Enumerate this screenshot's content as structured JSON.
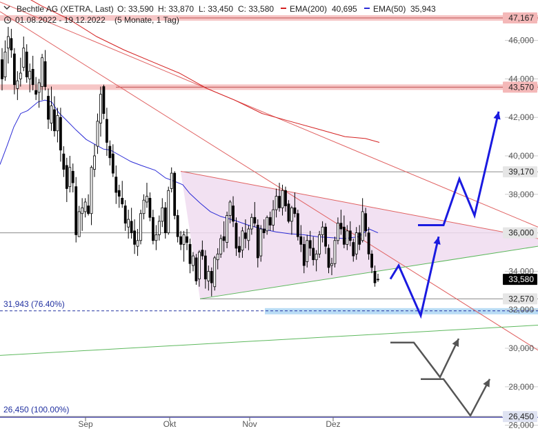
{
  "chart_data": {
    "type": "candlestick",
    "header": {
      "instrument": "Bechtle AG (XETRA, Last)",
      "open": "O: 33,590",
      "high": "H: 33,870",
      "low": "L: 33,450",
      "close": "C: 33,580",
      "ema200_label": "EMA(200)",
      "ema200_value": "40,695",
      "ema50_label": "EMA(50)",
      "ema50_value": "35,943",
      "period": "01.08.2022 - 19.12.2022",
      "resolution": "(5 Monate, 1 Tag)"
    },
    "colors": {
      "candle": "#000000",
      "ema200": "#d42020",
      "ema50": "#2b2bd6",
      "triangle_fill": "#f0dcf0",
      "resistance_band": "#f4b8b8",
      "support_band": "#b9dcf5",
      "arrow": "#1a1ae0",
      "scenario_arrow": "#555555",
      "trend_red": "#e06060",
      "trend_green": "#5cb85c"
    },
    "x_axis": {
      "ticks": [
        "Sep",
        "Okt",
        "Nov",
        "Dez"
      ]
    },
    "y_axis": {
      "range": [
        25.7,
        48.1
      ],
      "ticks": [
        "46,000",
        "44,000",
        "42,000",
        "40,000",
        "38,000",
        "36,000",
        "34,000",
        "32,000",
        "30,000",
        "28,000",
        "26,000"
      ],
      "tick_values": [
        46,
        44,
        42,
        40,
        38,
        36,
        34,
        32,
        30,
        28,
        26
      ]
    },
    "price_levels": [
      {
        "label": "47,167",
        "value": 47.167,
        "style": "band-red"
      },
      {
        "label": "43,570",
        "value": 43.57,
        "style": "band-red"
      },
      {
        "label": "39,170",
        "value": 39.17,
        "style": "line-gray"
      },
      {
        "label": "36,000",
        "value": 36.0,
        "style": "line-gray"
      },
      {
        "label": "33,580",
        "value": 33.58,
        "style": "current"
      },
      {
        "label": "32,570",
        "value": 32.57,
        "style": "line-gray"
      },
      {
        "label": "26,450",
        "value": 26.45,
        "style": "line-blue"
      }
    ],
    "fib_levels": [
      {
        "label": "31,943 (76.40%)",
        "value": 31.943
      },
      {
        "label": "26,450 (100.00%)",
        "value": 26.45
      }
    ],
    "candles": [
      [
        45.0,
        45.6,
        43.4,
        44.0
      ],
      [
        44.1,
        46.0,
        43.9,
        45.4
      ],
      [
        45.6,
        46.7,
        44.8,
        46.2
      ],
      [
        46.1,
        46.6,
        45.1,
        45.5
      ],
      [
        45.3,
        45.6,
        43.2,
        43.7
      ],
      [
        43.5,
        44.4,
        42.9,
        43.9
      ],
      [
        44.0,
        45.1,
        43.6,
        44.3
      ],
      [
        44.6,
        46.2,
        44.4,
        45.6
      ],
      [
        45.4,
        45.8,
        43.8,
        44.1
      ],
      [
        44.0,
        44.8,
        43.3,
        44.4
      ],
      [
        44.5,
        45.2,
        43.4,
        43.7
      ],
      [
        43.4,
        44.1,
        42.9,
        43.2
      ],
      [
        43.3,
        44.0,
        42.5,
        43.8
      ],
      [
        43.6,
        45.3,
        42.9,
        45.1
      ],
      [
        44.9,
        45.5,
        43.4,
        43.6
      ],
      [
        43.1,
        43.5,
        41.4,
        41.9
      ],
      [
        41.7,
        43.6,
        41.3,
        42.6
      ],
      [
        42.4,
        43.1,
        41.0,
        41.3
      ],
      [
        41.3,
        42.5,
        40.7,
        42.1
      ],
      [
        42.0,
        42.5,
        39.7,
        40.3
      ],
      [
        40.1,
        40.5,
        38.9,
        39.3
      ],
      [
        39.5,
        39.9,
        37.6,
        38.3
      ],
      [
        38.4,
        40.0,
        38.1,
        39.4
      ],
      [
        39.2,
        39.6,
        38.1,
        38.6
      ],
      [
        38.4,
        38.9,
        35.5,
        35.9
      ],
      [
        35.8,
        37.4,
        35.8,
        37.1
      ],
      [
        37.0,
        37.8,
        36.1,
        37.3
      ],
      [
        37.1,
        37.8,
        36.8,
        37.6
      ],
      [
        37.4,
        38.0,
        36.9,
        37.0
      ],
      [
        37.0,
        39.5,
        36.4,
        39.4
      ],
      [
        39.3,
        40.6,
        38.9,
        40.0
      ],
      [
        40.5,
        42.2,
        40.1,
        41.8
      ],
      [
        41.7,
        43.6,
        41.0,
        43.2
      ],
      [
        43.6,
        43.7,
        41.9,
        42.2
      ],
      [
        41.9,
        42.5,
        40.0,
        40.7
      ],
      [
        40.5,
        40.8,
        39.5,
        39.9
      ],
      [
        40.1,
        40.6,
        38.9,
        39.1
      ],
      [
        38.9,
        39.5,
        37.5,
        38.1
      ],
      [
        38.2,
        38.5,
        37.3,
        37.9
      ],
      [
        37.8,
        38.7,
        37.3,
        37.5
      ],
      [
        37.4,
        37.7,
        36.1,
        36.5
      ],
      [
        36.3,
        37.2,
        35.7,
        36.7
      ],
      [
        36.6,
        37.3,
        35.7,
        36.0
      ],
      [
        36.1,
        36.7,
        34.9,
        35.4
      ],
      [
        35.3,
        36.2,
        34.8,
        35.6
      ],
      [
        35.6,
        37.2,
        35.4,
        37.0
      ],
      [
        37.0,
        38.0,
        36.7,
        37.7
      ],
      [
        37.6,
        38.6,
        37.3,
        37.9
      ],
      [
        37.8,
        38.1,
        36.6,
        36.8
      ],
      [
        36.8,
        37.2,
        35.4,
        35.6
      ],
      [
        35.6,
        36.4,
        35.1,
        35.9
      ],
      [
        35.9,
        36.9,
        35.6,
        36.6
      ],
      [
        36.6,
        37.8,
        36.3,
        37.3
      ],
      [
        37.3,
        37.6,
        35.7,
        36.0
      ],
      [
        36.0,
        38.4,
        35.9,
        38.2
      ],
      [
        38.3,
        39.4,
        38.1,
        39.1
      ],
      [
        39.1,
        39.2,
        36.7,
        36.9
      ],
      [
        36.9,
        37.2,
        35.5,
        35.8
      ],
      [
        35.8,
        36.1,
        35.1,
        35.4
      ],
      [
        35.4,
        36.1,
        34.5,
        35.9
      ],
      [
        35.8,
        36.2,
        35.1,
        35.5
      ],
      [
        35.4,
        35.7,
        33.9,
        34.4
      ],
      [
        34.3,
        35.0,
        34.0,
        34.8
      ],
      [
        34.7,
        34.9,
        33.3,
        33.5
      ],
      [
        33.6,
        35.1,
        33.2,
        35.0
      ],
      [
        35.1,
        35.6,
        34.6,
        34.8
      ],
      [
        34.8,
        35.1,
        33.1,
        33.6
      ],
      [
        33.5,
        34.3,
        33.0,
        34.0
      ],
      [
        34.0,
        34.2,
        32.7,
        33.4
      ],
      [
        33.2,
        34.8,
        33.0,
        34.7
      ],
      [
        34.6,
        35.2,
        34.1,
        34.9
      ],
      [
        34.9,
        35.9,
        34.7,
        35.7
      ],
      [
        35.8,
        36.6,
        35.0,
        35.6
      ],
      [
        35.5,
        37.1,
        35.2,
        36.9
      ],
      [
        36.9,
        37.7,
        36.5,
        37.6
      ],
      [
        37.4,
        37.9,
        36.3,
        36.6
      ],
      [
        36.5,
        36.8,
        34.8,
        35.2
      ],
      [
        35.3,
        35.8,
        34.7,
        35.0
      ],
      [
        35.1,
        36.3,
        34.7,
        36.1
      ],
      [
        36.0,
        36.7,
        35.2,
        35.7
      ],
      [
        35.6,
        36.4,
        35.1,
        36.2
      ],
      [
        36.2,
        37.0,
        35.9,
        36.8
      ],
      [
        36.8,
        37.6,
        36.3,
        36.5
      ],
      [
        36.4,
        36.7,
        34.2,
        34.7
      ],
      [
        34.8,
        36.4,
        34.5,
        36.2
      ],
      [
        36.2,
        36.7,
        35.7,
        36.0
      ],
      [
        36.1,
        36.9,
        35.9,
        36.8
      ],
      [
        36.8,
        37.1,
        36.1,
        36.4
      ],
      [
        36.4,
        37.7,
        36.1,
        37.2
      ],
      [
        37.2,
        38.3,
        36.8,
        37.9
      ],
      [
        37.9,
        38.6,
        37.1,
        37.3
      ],
      [
        37.3,
        38.5,
        36.9,
        38.2
      ],
      [
        38.2,
        38.4,
        37.1,
        37.4
      ],
      [
        37.5,
        37.7,
        36.5,
        36.6
      ],
      [
        36.6,
        37.4,
        35.9,
        37.3
      ],
      [
        37.3,
        38.1,
        36.8,
        37.0
      ],
      [
        37.0,
        37.2,
        35.6,
        35.8
      ],
      [
        35.8,
        36.4,
        35.0,
        35.4
      ],
      [
        35.4,
        35.8,
        33.9,
        34.3
      ],
      [
        34.5,
        35.9,
        34.2,
        35.6
      ],
      [
        35.6,
        36.1,
        34.8,
        35.2
      ],
      [
        35.2,
        35.8,
        34.3,
        34.6
      ],
      [
        34.6,
        35.1,
        34.0,
        34.9
      ],
      [
        34.9,
        36.1,
        34.7,
        35.9
      ],
      [
        35.9,
        36.6,
        35.5,
        36.3
      ],
      [
        36.3,
        36.5,
        34.9,
        35.3
      ],
      [
        35.2,
        35.4,
        33.9,
        34.2
      ],
      [
        34.3,
        34.7,
        33.8,
        34.4
      ],
      [
        34.4,
        35.8,
        34.2,
        35.6
      ],
      [
        35.6,
        36.8,
        35.4,
        36.5
      ],
      [
        36.5,
        37.2,
        35.9,
        36.2
      ],
      [
        36.3,
        36.9,
        35.2,
        35.4
      ],
      [
        35.4,
        36.4,
        35.1,
        36.1
      ],
      [
        36.1,
        36.6,
        35.3,
        35.6
      ],
      [
        35.5,
        35.7,
        34.5,
        34.8
      ],
      [
        34.9,
        36.3,
        34.6,
        36.0
      ],
      [
        36.0,
        36.4,
        35.1,
        35.4
      ],
      [
        35.6,
        37.8,
        35.5,
        37.1
      ],
      [
        37.0,
        37.3,
        35.8,
        36.1
      ],
      [
        36.0,
        36.3,
        34.6,
        34.9
      ],
      [
        34.9,
        35.1,
        33.9,
        34.2
      ],
      [
        34.0,
        34.3,
        33.2,
        33.4
      ],
      [
        33.59,
        33.87,
        33.45,
        33.58
      ]
    ],
    "ema50": [
      [
        0,
        39.55
      ],
      [
        10,
        40.5
      ],
      [
        20,
        41.5
      ],
      [
        30,
        42.2
      ],
      [
        40,
        42.35
      ],
      [
        55,
        42.8
      ],
      [
        65,
        42.9
      ],
      [
        75,
        42.8
      ],
      [
        85,
        42.25
      ],
      [
        95,
        41.9
      ],
      [
        110,
        41.35
      ],
      [
        125,
        40.85
      ],
      [
        140,
        40.55
      ],
      [
        150,
        40.35
      ],
      [
        160,
        40.3
      ],
      [
        175,
        40.0
      ],
      [
        190,
        39.7
      ],
      [
        205,
        39.5
      ],
      [
        225,
        39.25
      ],
      [
        240,
        38.85
      ],
      [
        255,
        38.65
      ],
      [
        265,
        38.5
      ],
      [
        275,
        38.05
      ],
      [
        290,
        37.55
      ],
      [
        305,
        37.1
      ],
      [
        320,
        36.85
      ],
      [
        340,
        36.65
      ],
      [
        360,
        36.4
      ],
      [
        380,
        36.2
      ],
      [
        400,
        36.05
      ],
      [
        420,
        35.95
      ],
      [
        440,
        35.9
      ],
      [
        460,
        35.8
      ],
      [
        480,
        35.75
      ],
      [
        500,
        35.7
      ],
      [
        520,
        35.8
      ],
      [
        535,
        36.2
      ],
      [
        548,
        36.0
      ]
    ],
    "ema200": [
      [
        0,
        49.6
      ],
      [
        30,
        48.4
      ],
      [
        60,
        47.8
      ],
      [
        100,
        47.1
      ],
      [
        140,
        46.2
      ],
      [
        180,
        45.5
      ],
      [
        220,
        44.9
      ],
      [
        260,
        44.3
      ],
      [
        300,
        43.5
      ],
      [
        340,
        42.9
      ],
      [
        380,
        42.2
      ],
      [
        420,
        41.8
      ],
      [
        460,
        41.4
      ],
      [
        500,
        41.0
      ],
      [
        530,
        40.9
      ],
      [
        550,
        40.7
      ]
    ],
    "trendlines": [
      {
        "color": "trend_red",
        "p1": [
          0,
          47.5
        ],
        "p2": [
          780,
          29.9
        ]
      },
      {
        "color": "trend_red",
        "p1": [
          0,
          48.0
        ],
        "p2": [
          780,
          36.3
        ]
      },
      {
        "color": "trend_red",
        "p1": [
          262,
          39.2
        ],
        "p2": [
          780,
          35.7
        ]
      },
      {
        "color": "trend_green",
        "p1": [
          290,
          32.57
        ],
        "p2": [
          780,
          35.3
        ]
      },
      {
        "color": "trend_green",
        "p1": [
          0,
          29.63
        ],
        "p2": [
          780,
          31.2
        ]
      }
    ],
    "triangle": [
      [
        262,
        39.2
      ],
      [
        780,
        35.7
      ],
      [
        780,
        35.3
      ],
      [
        290,
        32.57
      ]
    ],
    "arrows_blue": [
      [
        [
          566,
          33.6
        ],
        [
          578,
          34.3
        ],
        [
          610,
          31.7
        ],
        [
          636,
          35.8
        ]
      ],
      [
        [
          606,
          36.4
        ],
        [
          643,
          36.4
        ],
        [
          666,
          38.8
        ],
        [
          688,
          36.9
        ],
        [
          723,
          42.3
        ]
      ]
    ],
    "arrows_gray": [
      [
        [
          566,
          30.3
        ],
        [
          600,
          30.3
        ],
        [
          638,
          28.5
        ],
        [
          665,
          30.5
        ]
      ],
      [
        [
          610,
          28.4
        ],
        [
          643,
          28.4
        ],
        [
          682,
          26.5
        ],
        [
          710,
          28.4
        ]
      ]
    ]
  }
}
